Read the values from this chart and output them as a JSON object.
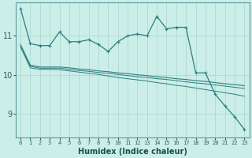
{
  "bg_color": "#cceee8",
  "grid_color": "#aad4ce",
  "line_color": "#2a7f7f",
  "xlabel": "Humidex (Indice chaleur)",
  "xlabel_fontsize": 7,
  "yticks": [
    9,
    10,
    11
  ],
  "ylim": [
    8.4,
    11.85
  ],
  "xlim": [
    -0.5,
    23.5
  ],
  "line1_y": [
    11.7,
    10.8,
    10.75,
    10.75,
    11.1,
    10.85,
    10.85,
    10.9,
    10.78,
    10.6,
    10.85,
    11.0,
    11.05,
    11.0,
    11.5,
    11.18,
    11.22,
    11.22,
    10.05,
    10.05,
    9.5,
    9.2,
    8.92,
    8.6
  ],
  "line2_y": [
    10.78,
    10.25,
    10.2,
    10.2,
    10.2,
    10.18,
    10.15,
    10.13,
    10.1,
    10.08,
    10.05,
    10.03,
    10.0,
    9.98,
    9.95,
    9.93,
    9.9,
    9.88,
    9.85,
    9.83,
    9.8,
    9.77,
    9.75,
    9.72
  ],
  "line3_y": [
    10.72,
    10.22,
    10.17,
    10.17,
    10.17,
    10.14,
    10.11,
    10.09,
    10.06,
    10.04,
    10.01,
    9.98,
    9.95,
    9.93,
    9.9,
    9.88,
    9.85,
    9.82,
    9.79,
    9.77,
    9.74,
    9.71,
    9.68,
    9.65
  ],
  "line4_y": [
    10.72,
    10.18,
    10.14,
    10.14,
    10.13,
    10.1,
    10.07,
    10.04,
    10.01,
    9.97,
    9.93,
    9.9,
    9.87,
    9.84,
    9.8,
    9.77,
    9.73,
    9.7,
    9.66,
    9.62,
    9.58,
    9.54,
    9.5,
    9.45
  ]
}
